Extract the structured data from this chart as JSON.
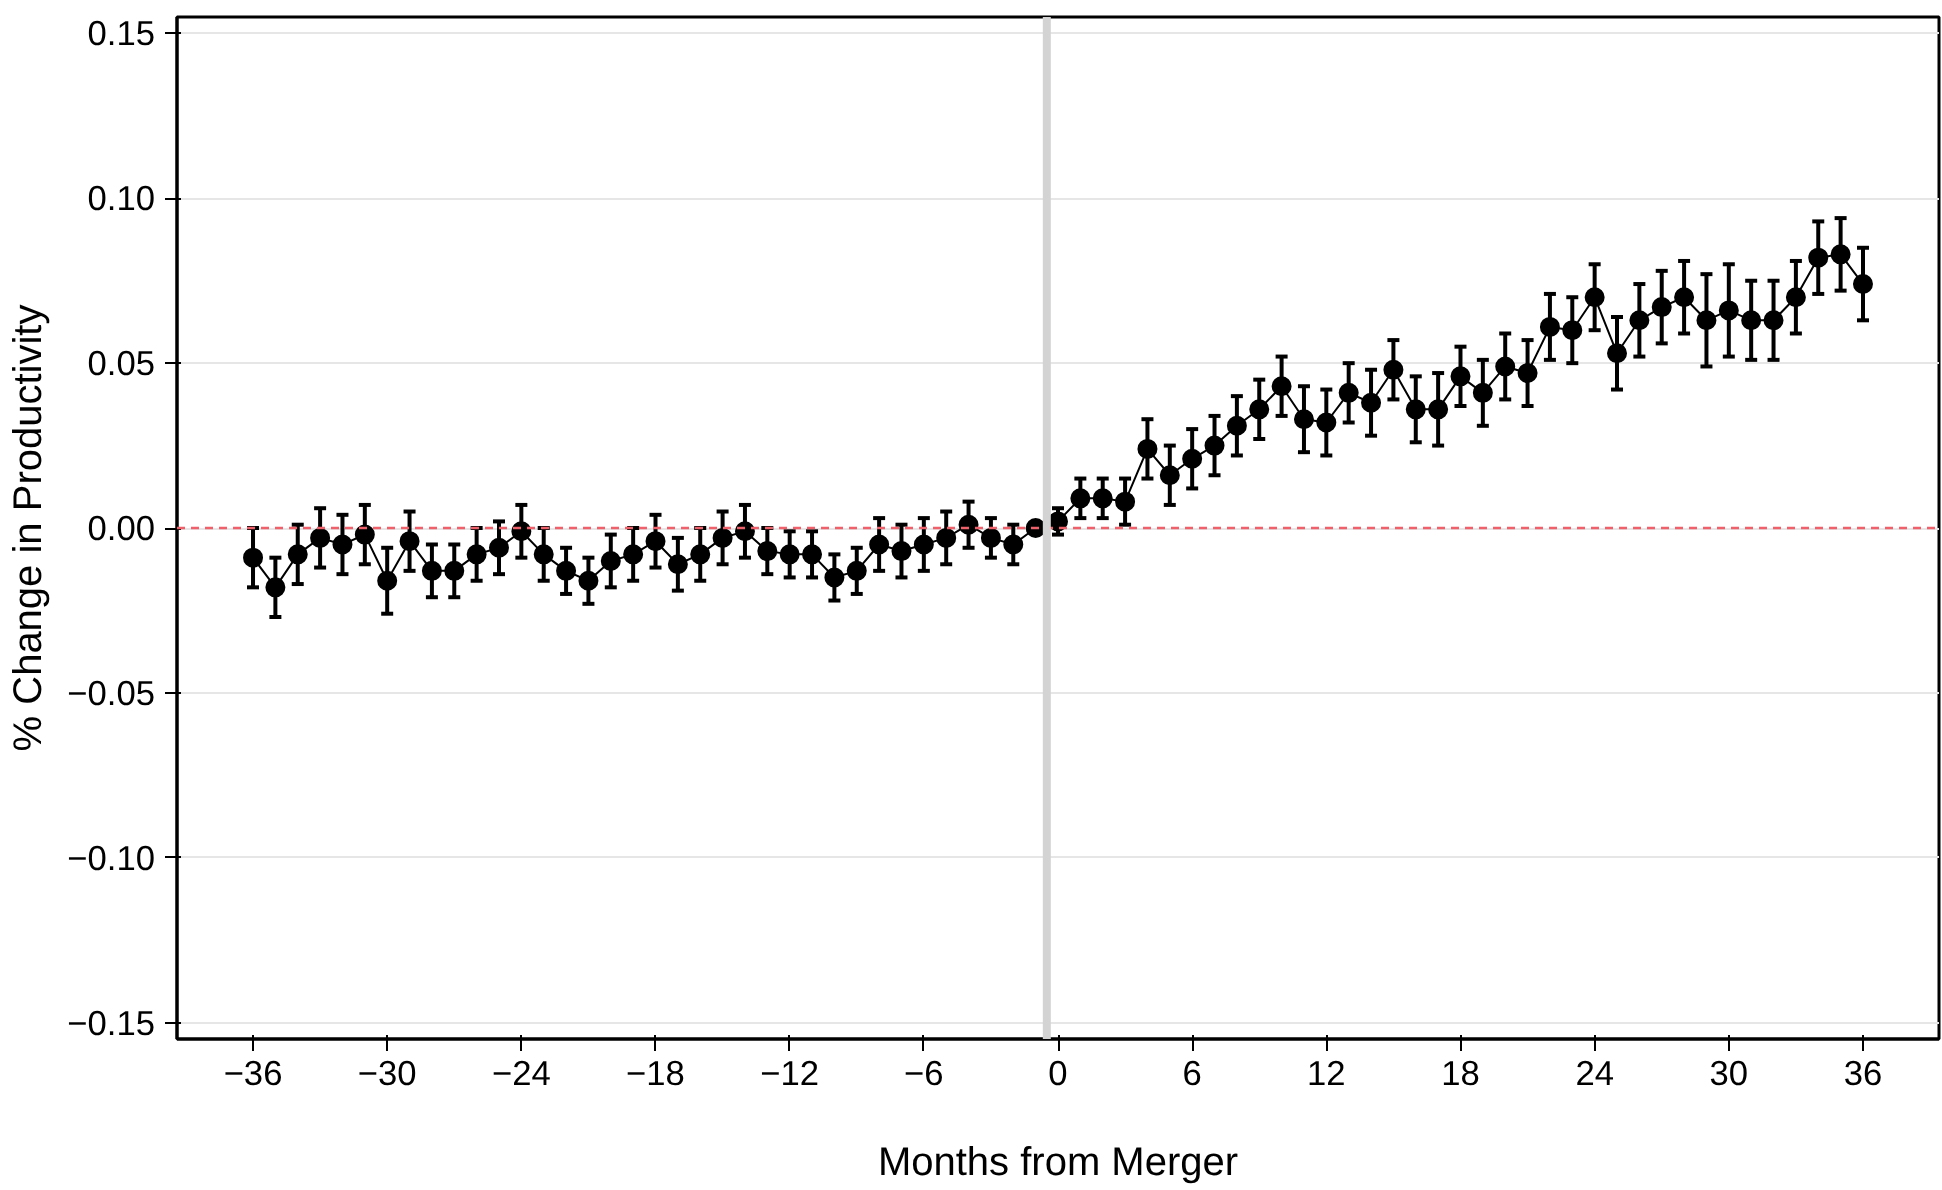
{
  "chart_data": {
    "type": "line",
    "xlabel": "Months from Merger",
    "ylabel": "% Change in Productivity",
    "x": [
      -36,
      -35,
      -34,
      -33,
      -32,
      -31,
      -30,
      -29,
      -28,
      -27,
      -26,
      -25,
      -24,
      -23,
      -22,
      -21,
      -20,
      -19,
      -18,
      -17,
      -16,
      -15,
      -14,
      -13,
      -12,
      -11,
      -10,
      -9,
      -8,
      -7,
      -6,
      -5,
      -4,
      -3,
      -2,
      -1,
      0,
      1,
      2,
      3,
      4,
      5,
      6,
      7,
      8,
      9,
      10,
      11,
      12,
      13,
      14,
      15,
      16,
      17,
      18,
      19,
      20,
      21,
      22,
      23,
      24,
      25,
      26,
      27,
      28,
      29,
      30,
      31,
      32,
      33,
      34,
      35,
      36
    ],
    "series": [
      {
        "color": "#000000",
        "values": [
          -0.009,
          -0.018,
          -0.008,
          -0.003,
          -0.005,
          -0.002,
          -0.016,
          -0.004,
          -0.013,
          -0.013,
          -0.008,
          -0.006,
          -0.001,
          -0.008,
          -0.013,
          -0.016,
          -0.01,
          -0.008,
          -0.004,
          -0.011,
          -0.008,
          -0.003,
          -0.001,
          -0.007,
          -0.008,
          -0.008,
          -0.015,
          -0.013,
          -0.005,
          -0.007,
          -0.005,
          -0.003,
          0.001,
          -0.003,
          -0.005,
          0.0,
          0.002,
          0.009,
          0.009,
          0.008,
          0.024,
          0.016,
          0.021,
          0.025,
          0.031,
          0.036,
          0.043,
          0.033,
          0.032,
          0.041,
          0.038,
          0.048,
          0.036,
          0.036,
          0.046,
          0.041,
          0.049,
          0.047,
          0.061,
          0.06,
          0.07,
          0.053,
          0.063,
          0.067,
          0.07,
          0.063,
          0.066,
          0.063,
          0.063,
          0.07,
          0.082,
          0.083,
          0.074
        ],
        "errors": [
          0.009,
          0.009,
          0.009,
          0.009,
          0.009,
          0.009,
          0.01,
          0.009,
          0.008,
          0.008,
          0.008,
          0.008,
          0.008,
          0.008,
          0.007,
          0.007,
          0.008,
          0.008,
          0.008,
          0.008,
          0.008,
          0.008,
          0.008,
          0.007,
          0.007,
          0.007,
          0.007,
          0.007,
          0.008,
          0.008,
          0.008,
          0.008,
          0.007,
          0.006,
          0.006,
          null,
          0.004,
          0.006,
          0.006,
          0.007,
          0.009,
          0.009,
          0.009,
          0.009,
          0.009,
          0.009,
          0.009,
          0.01,
          0.01,
          0.009,
          0.01,
          0.009,
          0.01,
          0.011,
          0.009,
          0.01,
          0.01,
          0.01,
          0.01,
          0.01,
          0.01,
          0.011,
          0.011,
          0.011,
          0.011,
          0.014,
          0.014,
          0.012,
          0.012,
          0.011,
          0.011,
          0.011,
          0.011
        ]
      }
    ],
    "marker": "circle",
    "line_style": "solid",
    "grid": "y",
    "xlim": [
      -39.4,
      39.4
    ],
    "xticks": [
      {
        "value": -36,
        "label": "−36"
      },
      {
        "value": -30,
        "label": "−30"
      },
      {
        "value": -24,
        "label": "−24"
      },
      {
        "value": -18,
        "label": "−18"
      },
      {
        "value": -12,
        "label": "−12"
      },
      {
        "value": -6,
        "label": "−6"
      },
      0,
      6,
      12,
      18,
      24,
      30,
      36
    ],
    "ylim": [
      -0.155,
      0.155
    ],
    "yticks": [
      {
        "value": -0.15,
        "label": "−0.15"
      },
      {
        "value": -0.1,
        "label": "−0.10"
      },
      {
        "value": -0.05,
        "label": "−0.05"
      },
      {
        "value": 0,
        "label": "0.00"
      },
      {
        "value": 0.05,
        "label": "0.05"
      },
      {
        "value": 0.1,
        "label": "0.10"
      },
      {
        "value": 0.15,
        "label": "0.15"
      }
    ],
    "ref_lines": [
      {
        "axis": "y",
        "value": 0,
        "color": "#f0606a",
        "line_style": "dashed"
      },
      {
        "axis": "x",
        "value": -0.5,
        "color": "#d3d3d3",
        "line_style": "solid"
      }
    ]
  }
}
